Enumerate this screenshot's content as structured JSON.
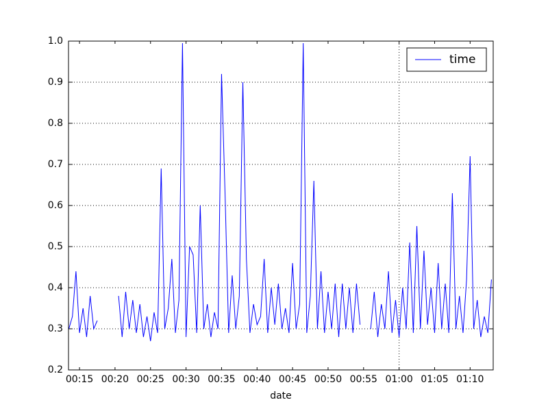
{
  "chart_data": {
    "type": "line",
    "xlabel": "date",
    "x": [
      13.5,
      14.0,
      14.5,
      15.0,
      15.5,
      16.0,
      16.5,
      17.0,
      17.5,
      18.0,
      18.5,
      19.0,
      19.5,
      20.0,
      20.5,
      21.0,
      21.5,
      22.0,
      22.5,
      23.0,
      23.5,
      24.0,
      24.5,
      25.0,
      25.5,
      26.0,
      26.5,
      27.0,
      27.5,
      28.0,
      28.5,
      29.0,
      29.5,
      30.0,
      30.5,
      31.0,
      31.5,
      32.0,
      32.5,
      33.0,
      33.5,
      34.0,
      34.5,
      35.0,
      35.5,
      36.0,
      36.5,
      37.0,
      37.5,
      38.0,
      38.5,
      39.0,
      39.5,
      40.0,
      40.5,
      41.0,
      41.5,
      42.0,
      42.5,
      43.0,
      43.5,
      44.0,
      44.5,
      45.0,
      45.5,
      46.0,
      46.5,
      47.0,
      47.5,
      48.0,
      48.5,
      49.0,
      49.5,
      50.0,
      50.5,
      51.0,
      51.5,
      52.0,
      52.5,
      53.0,
      53.5,
      54.0,
      54.5,
      55.0,
      55.5,
      56.0,
      56.5,
      57.0,
      57.5,
      58.0,
      58.5,
      59.0,
      59.5,
      60.0,
      60.5,
      61.0,
      61.5,
      62.0,
      62.5,
      63.0,
      63.5,
      64.0,
      64.5,
      65.0,
      65.5,
      66.0,
      66.5,
      67.0,
      67.5,
      68.0,
      68.5,
      69.0,
      69.5,
      70.0,
      70.5,
      71.0,
      71.5,
      72.0,
      72.5,
      73.0
    ],
    "series": [
      {
        "name": "time",
        "color": "#0000ff",
        "values": [
          0.3,
          0.33,
          0.44,
          0.29,
          0.35,
          0.28,
          0.38,
          0.3,
          0.32,
          null,
          null,
          null,
          null,
          null,
          0.38,
          0.28,
          0.39,
          0.3,
          0.37,
          0.29,
          0.36,
          0.28,
          0.33,
          0.27,
          0.34,
          0.29,
          0.69,
          0.3,
          0.35,
          0.47,
          0.29,
          0.37,
          0.995,
          0.28,
          0.5,
          0.48,
          0.29,
          0.6,
          0.3,
          0.36,
          0.28,
          0.34,
          0.3,
          0.92,
          0.625,
          0.29,
          0.43,
          0.3,
          0.38,
          0.9,
          0.47,
          0.29,
          0.36,
          0.31,
          0.33,
          0.47,
          0.29,
          0.4,
          0.31,
          0.41,
          0.3,
          0.35,
          0.29,
          0.46,
          0.3,
          0.36,
          0.995,
          0.29,
          0.38,
          0.66,
          0.3,
          0.44,
          0.29,
          0.39,
          0.3,
          0.41,
          0.28,
          0.41,
          0.3,
          0.4,
          0.29,
          0.41,
          0.31,
          null,
          null,
          0.3,
          0.39,
          0.28,
          0.36,
          0.3,
          0.44,
          0.29,
          0.37,
          0.28,
          0.4,
          0.3,
          0.51,
          0.29,
          0.55,
          0.3,
          0.49,
          0.31,
          0.4,
          0.29,
          0.46,
          0.3,
          0.41,
          0.29,
          0.63,
          0.3,
          0.38,
          0.29,
          0.42,
          0.72,
          0.3,
          0.37,
          0.28,
          0.33,
          0.29,
          0.42
        ]
      }
    ],
    "xlim": [
      13.45,
      73.25
    ],
    "xticks": [
      {
        "value": 15,
        "label": "00:15"
      },
      {
        "value": 20,
        "label": "00:20"
      },
      {
        "value": 25,
        "label": "00:25"
      },
      {
        "value": 30,
        "label": "00:30"
      },
      {
        "value": 35,
        "label": "00:35"
      },
      {
        "value": 40,
        "label": "00:40"
      },
      {
        "value": 45,
        "label": "00:45"
      },
      {
        "value": 50,
        "label": "00:50"
      },
      {
        "value": 55,
        "label": "00:55"
      },
      {
        "value": 60,
        "label": "01:00"
      },
      {
        "value": 65,
        "label": "01:05"
      },
      {
        "value": 70,
        "label": "01:10"
      }
    ],
    "xgrid_values": [
      60
    ],
    "ylim": [
      0.2,
      1.0
    ],
    "yticks": [
      0.2,
      0.3,
      0.4,
      0.5,
      0.6,
      0.7,
      0.8,
      0.9,
      {
        "value": 1.0,
        "label": "1.0"
      }
    ],
    "grid": true,
    "legend": "upper right"
  }
}
